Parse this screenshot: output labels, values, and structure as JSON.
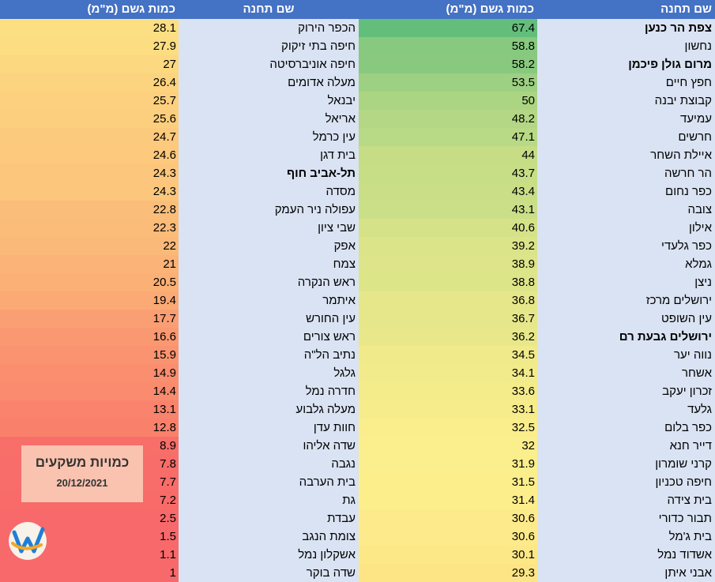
{
  "headers": {
    "name_label": "שם תחנה",
    "amount_label": "כמות גשם (מ\"מ)"
  },
  "right_table": [
    {
      "name": "צפת הר כנען",
      "value": "67.4",
      "bold": true,
      "color": "#63be7b"
    },
    {
      "name": "נחשון",
      "value": "58.8",
      "bold": false,
      "color": "#86c97f"
    },
    {
      "name": "מרום גולן פיכמן",
      "value": "58.2",
      "bold": true,
      "color": "#88c97f"
    },
    {
      "name": "חפץ חיים",
      "value": "53.5",
      "bold": false,
      "color": "#9dd082"
    },
    {
      "name": "קבוצת יבנה",
      "value": "50",
      "bold": false,
      "color": "#abd583"
    },
    {
      "name": "עמיעד",
      "value": "48.2",
      "bold": false,
      "color": "#b3d784"
    },
    {
      "name": "חרשים",
      "value": "47.1",
      "bold": false,
      "color": "#b8d985"
    },
    {
      "name": "איילת השחר",
      "value": "44",
      "bold": false,
      "color": "#c6dd86"
    },
    {
      "name": "הר חרשה",
      "value": "43.7",
      "bold": false,
      "color": "#c7de86"
    },
    {
      "name": "כפר נחום",
      "value": "43.4",
      "bold": false,
      "color": "#c9de86"
    },
    {
      "name": "צובה",
      "value": "43.1",
      "bold": false,
      "color": "#cadf87"
    },
    {
      "name": "אילון",
      "value": "40.6",
      "bold": false,
      "color": "#d5e288"
    },
    {
      "name": "כפר גלעדי",
      "value": "39.2",
      "bold": false,
      "color": "#dbe489"
    },
    {
      "name": "גמלא",
      "value": "38.9",
      "bold": false,
      "color": "#dde489"
    },
    {
      "name": "ניצן",
      "value": "38.8",
      "bold": false,
      "color": "#dde589"
    },
    {
      "name": "ירושלים מרכז",
      "value": "36.8",
      "bold": false,
      "color": "#e6e78a"
    },
    {
      "name": "עין השופט",
      "value": "36.7",
      "bold": false,
      "color": "#e6e78a"
    },
    {
      "name": "ירושלים גבעת רם",
      "value": "36.2",
      "bold": true,
      "color": "#e8e88a"
    },
    {
      "name": "נווה יער",
      "value": "34.5",
      "bold": false,
      "color": "#f0ea8b"
    },
    {
      "name": "אשחר",
      "value": "34.1",
      "bold": false,
      "color": "#f2eb8b"
    },
    {
      "name": "זכרון יעקב",
      "value": "33.6",
      "bold": false,
      "color": "#f4eb8b"
    },
    {
      "name": "גלעד",
      "value": "33.1",
      "bold": false,
      "color": "#f6ec8b"
    },
    {
      "name": "כפר בלום",
      "value": "32.5",
      "bold": false,
      "color": "#f9ed8c"
    },
    {
      "name": "דייר חנא",
      "value": "32",
      "bold": false,
      "color": "#fbee8c"
    },
    {
      "name": "קרני שומרון",
      "value": "31.9",
      "bold": false,
      "color": "#fbee8c"
    },
    {
      "name": "חיפה טכניון",
      "value": "31.5",
      "bold": false,
      "color": "#fdee8c"
    },
    {
      "name": "בית צידה",
      "value": "31.4",
      "bold": false,
      "color": "#fdee8c"
    },
    {
      "name": "תבור כדורי",
      "value": "30.6",
      "bold": false,
      "color": "#fdea8a"
    },
    {
      "name": "בית ג'מל",
      "value": "30.6",
      "bold": false,
      "color": "#fdea8a"
    },
    {
      "name": "אשדוד נמל",
      "value": "30.1",
      "bold": false,
      "color": "#fde888"
    },
    {
      "name": "אבני איתן",
      "value": "29.3",
      "bold": false,
      "color": "#fde586"
    }
  ],
  "left_table": [
    {
      "name": "הכפר הירוק",
      "value": "28.1",
      "bold": false,
      "color": "#fddf83"
    },
    {
      "name": "חיפה בתי זיקוק",
      "value": "27.9",
      "bold": false,
      "color": "#fddd82"
    },
    {
      "name": "חיפה אוניברסיטה",
      "value": "27",
      "bold": false,
      "color": "#fcd880"
    },
    {
      "name": "מעלה אדומים",
      "value": "26.4",
      "bold": false,
      "color": "#fcd47f"
    },
    {
      "name": "יבנאל",
      "value": "25.7",
      "bold": false,
      "color": "#fcd07e"
    },
    {
      "name": "אריאל",
      "value": "25.6",
      "bold": false,
      "color": "#fccf7e"
    },
    {
      "name": "עין כרמל",
      "value": "24.7",
      "bold": false,
      "color": "#fcca7d"
    },
    {
      "name": "בית דגן",
      "value": "24.6",
      "bold": false,
      "color": "#fcc97d"
    },
    {
      "name": "תל-אביב חוף",
      "value": "24.3",
      "bold": true,
      "color": "#fcc77c"
    },
    {
      "name": "מסדה",
      "value": "24.3",
      "bold": false,
      "color": "#fcc77c"
    },
    {
      "name": "עפולה ניר העמק",
      "value": "22.8",
      "bold": false,
      "color": "#fbbe7a"
    },
    {
      "name": "שבי ציון",
      "value": "22.3",
      "bold": false,
      "color": "#fbbb79"
    },
    {
      "name": "אפק",
      "value": "22",
      "bold": false,
      "color": "#fbb979"
    },
    {
      "name": "צמח",
      "value": "21",
      "bold": false,
      "color": "#fbb377"
    },
    {
      "name": "ראש הנקרה",
      "value": "20.5",
      "bold": false,
      "color": "#fbb076"
    },
    {
      "name": "איתמר",
      "value": "19.4",
      "bold": false,
      "color": "#fba975"
    },
    {
      "name": "עין החורש",
      "value": "17.7",
      "bold": false,
      "color": "#fa9f73"
    },
    {
      "name": "ראש צורים",
      "value": "16.6",
      "bold": false,
      "color": "#fa9871"
    },
    {
      "name": "נתיב הל\"ה",
      "value": "15.9",
      "bold": false,
      "color": "#fa9470"
    },
    {
      "name": "גלגל",
      "value": "14.9",
      "bold": false,
      "color": "#fa8e6f"
    },
    {
      "name": "חדרה נמל",
      "value": "14.4",
      "bold": false,
      "color": "#fa8b6e"
    },
    {
      "name": "מעלה גלבוע",
      "value": "13.1",
      "bold": false,
      "color": "#f9836c"
    },
    {
      "name": "חוות עדן",
      "value": "12.8",
      "bold": false,
      "color": "#f9816c"
    },
    {
      "name": "שדה אליהו",
      "value": "8.9",
      "bold": false,
      "color": "#f86e69"
    },
    {
      "name": "נגבה",
      "value": "7.8",
      "bold": false,
      "color": "#f86c69"
    },
    {
      "name": "בית הערבה",
      "value": "7.7",
      "bold": false,
      "color": "#f86c69"
    },
    {
      "name": "גת",
      "value": "7.2",
      "bold": false,
      "color": "#f86b69"
    },
    {
      "name": "עבדת",
      "value": "2.5",
      "bold": false,
      "color": "#f8696b"
    },
    {
      "name": "צומת הנגב",
      "value": "1.5",
      "bold": false,
      "color": "#f8696b"
    },
    {
      "name": "אשקלון נמל",
      "value": "1.1",
      "bold": false,
      "color": "#f8696b"
    },
    {
      "name": "שדה בוקר",
      "value": "1",
      "bold": false,
      "color": "#f8696b"
    }
  ],
  "stamp": {
    "title": "כמויות משקעים",
    "date": "20/12/2021"
  },
  "logo": {
    "icon": "weather-logo-icon",
    "colors": [
      "#ffffff",
      "#f5a623",
      "#1f7fd6"
    ]
  },
  "colors": {
    "header_bg": "#4472c4",
    "header_text": "#ffffff",
    "name_bg": "#dae3f3",
    "stamp_bg": "#f9c3b0"
  }
}
